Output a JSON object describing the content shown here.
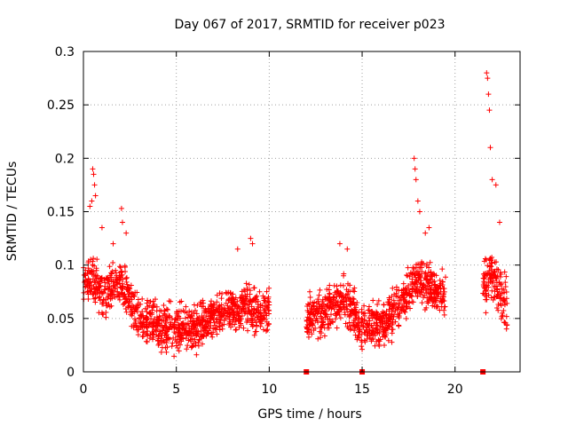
{
  "chart_data": {
    "type": "scatter",
    "title": "Day 067 of 2017, SRMTID for receiver p023",
    "xlabel": "GPS time / hours",
    "ylabel": "SRMTID / TECUs",
    "xlim": [
      0,
      23.5
    ],
    "ylim": [
      0,
      0.3
    ],
    "x_ticks": [
      0,
      5,
      10,
      15,
      20
    ],
    "x_tick_labels": [
      "0",
      "5",
      "10",
      "15",
      "20"
    ],
    "y_ticks": [
      0,
      0.05,
      0.1,
      0.15,
      0.2,
      0.25,
      0.3
    ],
    "y_tick_labels": [
      "0",
      "0.05",
      "0.1",
      "0.15",
      "0.2",
      "0.25",
      "0.3"
    ],
    "grid": true,
    "marker": "plus",
    "color": "#ff0000",
    "segments": [
      {
        "start": 0.0,
        "end": 10.0,
        "typical": [
          [
            0,
            0.085
          ],
          [
            0.5,
            0.09
          ],
          [
            1,
            0.075
          ],
          [
            2,
            0.085
          ],
          [
            3,
            0.05
          ],
          [
            4,
            0.045
          ],
          [
            5,
            0.04
          ],
          [
            6,
            0.04
          ],
          [
            7,
            0.05
          ],
          [
            8,
            0.06
          ],
          [
            9,
            0.06
          ],
          [
            10,
            0.055
          ]
        ],
        "spread": 0.03
      },
      {
        "start": 12.0,
        "end": 19.5,
        "typical": [
          [
            12,
            0.05
          ],
          [
            13,
            0.055
          ],
          [
            14,
            0.07
          ],
          [
            15,
            0.04
          ],
          [
            16,
            0.045
          ],
          [
            17,
            0.06
          ],
          [
            18,
            0.09
          ],
          [
            19,
            0.075
          ],
          [
            19.5,
            0.07
          ]
        ],
        "spread": 0.03
      },
      {
        "start": 21.5,
        "end": 22.8,
        "typical": [
          [
            21.5,
            0.08
          ],
          [
            22,
            0.09
          ],
          [
            22.8,
            0.06
          ]
        ],
        "spread": 0.035
      }
    ],
    "series": [
      {
        "name": "spikes",
        "x": [
          0.35,
          0.45,
          0.5,
          0.55,
          0.6,
          0.65,
          1.0,
          1.6,
          2.05,
          2.1,
          2.3,
          9.0,
          9.1,
          8.3,
          13.8,
          14.2,
          17.8,
          17.85,
          17.9,
          18.0,
          18.1,
          18.4,
          18.6,
          21.7,
          21.75,
          21.8,
          21.85,
          21.9,
          22.0,
          22.2,
          22.4
        ],
        "y": [
          0.155,
          0.16,
          0.19,
          0.185,
          0.175,
          0.165,
          0.135,
          0.12,
          0.153,
          0.14,
          0.13,
          0.125,
          0.12,
          0.115,
          0.12,
          0.115,
          0.2,
          0.19,
          0.18,
          0.16,
          0.15,
          0.13,
          0.135,
          0.28,
          0.275,
          0.26,
          0.245,
          0.21,
          0.18,
          0.175,
          0.14
        ]
      },
      {
        "name": "gap markers",
        "x": [
          12.0,
          15.0,
          21.5
        ],
        "y": [
          0.0,
          0.0,
          0.0
        ]
      }
    ]
  }
}
